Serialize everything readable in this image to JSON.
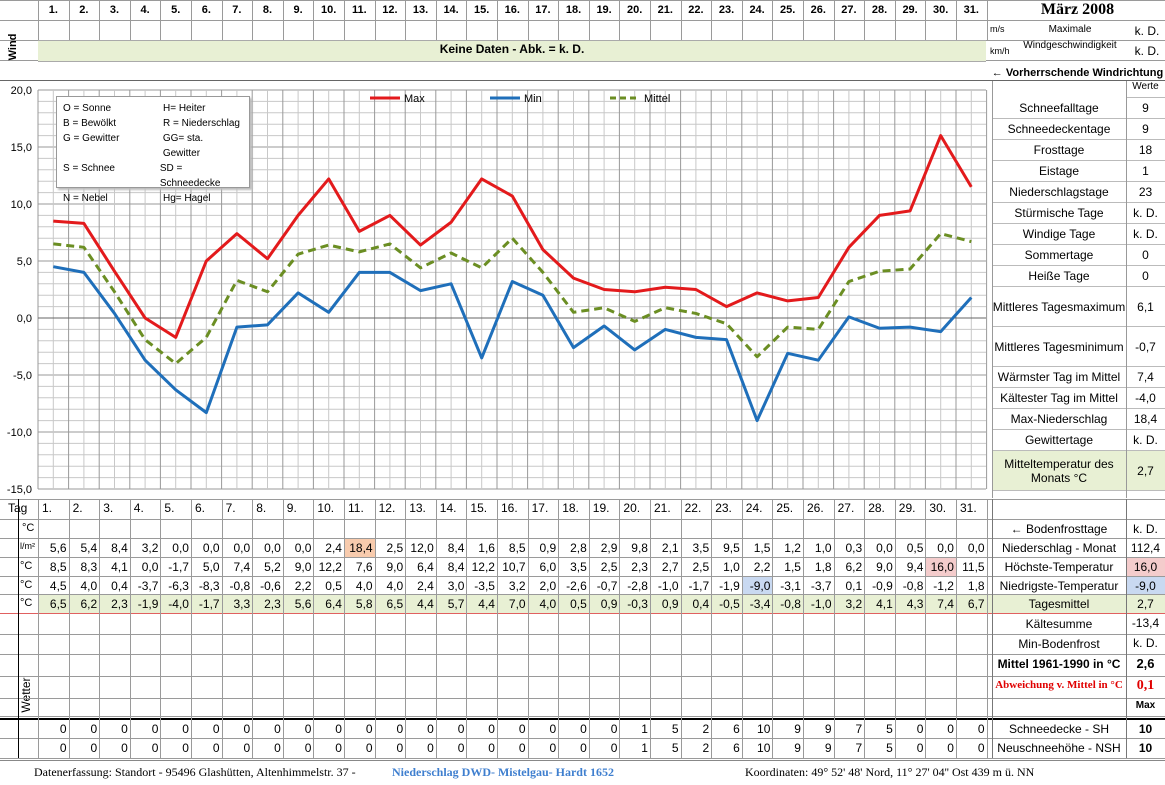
{
  "header": {
    "wind_label": "Wind",
    "nodata_text": "Keine Daten - Abk. = k. D.",
    "unit_ms": "m/s",
    "unit_kmh": "km/h",
    "max_wind_label": "Maximale Windgeschwindigkeit",
    "max_wind_value_1": "k. D.",
    "max_wind_value_2": "k. D.",
    "month_title": "März 2008",
    "wind_dir_label": "← Vorherrschende Windrichtung"
  },
  "days": [
    "1.",
    "2.",
    "3.",
    "4.",
    "5.",
    "6.",
    "7.",
    "8.",
    "9.",
    "10.",
    "11.",
    "12.",
    "13.",
    "14.",
    "15.",
    "16.",
    "17.",
    "18.",
    "19.",
    "20.",
    "21.",
    "22.",
    "23.",
    "24.",
    "25.",
    "26.",
    "27.",
    "28.",
    "29.",
    "30.",
    "31."
  ],
  "legend_box": {
    "lines": [
      [
        "O = Sonne",
        "H= Heiter"
      ],
      [
        "B = Bewölkt",
        "R = Niederschlag"
      ],
      [
        "G = Gewitter",
        "GG= sta. Gewitter"
      ],
      [
        "S = Schnee",
        "SD = Schneedecke"
      ],
      [
        "N = Nebel",
        "Hg= Hagel"
      ]
    ]
  },
  "chart_data": {
    "type": "line",
    "x": [
      1,
      2,
      3,
      4,
      5,
      6,
      7,
      8,
      9,
      10,
      11,
      12,
      13,
      14,
      15,
      16,
      17,
      18,
      19,
      20,
      21,
      22,
      23,
      24,
      25,
      26,
      27,
      28,
      29,
      30,
      31
    ],
    "ylim": [
      -15,
      20
    ],
    "yticks": [
      "20,0",
      "15,0",
      "10,0",
      "5,0",
      "0,0",
      "-5,0",
      "-10,0",
      "-15,0"
    ],
    "grid": true,
    "legend_position": "top",
    "series": [
      {
        "name": "Max",
        "color": "#e31a1c",
        "style": "solid",
        "values": [
          8.5,
          8.3,
          4.1,
          0.0,
          -1.7,
          5.0,
          7.4,
          5.2,
          9.0,
          12.2,
          7.6,
          9.0,
          6.4,
          8.4,
          12.2,
          10.7,
          6.0,
          3.5,
          2.5,
          2.3,
          2.7,
          2.5,
          1.0,
          2.2,
          1.5,
          1.8,
          6.2,
          9.0,
          9.4,
          16.0,
          11.5
        ]
      },
      {
        "name": "Min",
        "color": "#1f6fba",
        "style": "solid",
        "values": [
          4.5,
          4.0,
          0.4,
          -3.7,
          -6.3,
          -8.3,
          -0.8,
          -0.6,
          2.2,
          0.5,
          4.0,
          4.0,
          2.4,
          3.0,
          -3.5,
          3.2,
          2.0,
          -2.6,
          -0.7,
          -2.8,
          -1.0,
          -1.7,
          -1.9,
          -9.0,
          -3.1,
          -3.7,
          0.1,
          -0.9,
          -0.8,
          -1.2,
          1.8
        ]
      },
      {
        "name": "Mittel",
        "color": "#6b8e23",
        "style": "dashed",
        "values": [
          6.5,
          6.2,
          2.3,
          -1.9,
          -4.0,
          -1.7,
          3.3,
          2.3,
          5.6,
          6.4,
          5.8,
          6.5,
          4.4,
          5.7,
          4.4,
          7.0,
          4.0,
          0.5,
          0.9,
          -0.3,
          0.9,
          0.4,
          -0.5,
          -3.4,
          -0.8,
          -1.0,
          3.2,
          4.1,
          4.3,
          7.4,
          6.7
        ]
      }
    ]
  },
  "stats": {
    "header": "Werte",
    "rows": [
      {
        "label": "Schneefalltage",
        "value": "9"
      },
      {
        "label": "Schneedeckentage",
        "value": "9"
      },
      {
        "label": "Frosttage",
        "value": "18"
      },
      {
        "label": "Eistage",
        "value": "1"
      },
      {
        "label": "Niederschlagstage",
        "value": "23"
      },
      {
        "label": "Stürmische Tage",
        "value": "k. D."
      },
      {
        "label": "Windige Tage",
        "value": "k. D."
      },
      {
        "label": "Sommertage",
        "value": "0"
      },
      {
        "label": "Heiße Tage",
        "value": "0"
      },
      {
        "label": "Mittleres Tagesmaximum",
        "value": "6,1"
      },
      {
        "label": "Mittleres Tagesminimum",
        "value": "-0,7"
      },
      {
        "label": "Wärmster Tag im Mittel",
        "value": "7,4"
      },
      {
        "label": "Kältester Tag im Mittel",
        "value": "-4,0"
      },
      {
        "label": "Max-Niederschlag",
        "value": "18,4"
      },
      {
        "label": "Gewittertage",
        "value": "k. D."
      },
      {
        "label": "Mitteltemperatur des Monats °C",
        "value": "2,7"
      }
    ]
  },
  "table": {
    "tag_label": "Tag",
    "bodenfrost_label": "← Bodenfrosttage",
    "bodenfrost_value": "k. D.",
    "rows": [
      {
        "unit": "l/m²",
        "label": "Niederschlag - Monat",
        "total": "112,4",
        "values": [
          "5,6",
          "5,4",
          "8,4",
          "3,2",
          "0,0",
          "0,0",
          "0,0",
          "0,0",
          "0,0",
          "2,4",
          "18,4",
          "2,5",
          "12,0",
          "8,4",
          "1,6",
          "8,5",
          "0,9",
          "2,8",
          "2,9",
          "9,8",
          "2,1",
          "3,5",
          "9,5",
          "1,5",
          "1,2",
          "1,0",
          "0,3",
          "0,0",
          "0,5",
          "0,0",
          "0,0"
        ]
      },
      {
        "unit": "°C",
        "label": "Höchste-Temperatur",
        "total": "16,0",
        "values": [
          "8,5",
          "8,3",
          "4,1",
          "0,0",
          "-1,7",
          "5,0",
          "7,4",
          "5,2",
          "9,0",
          "12,2",
          "7,6",
          "9,0",
          "6,4",
          "8,4",
          "12,2",
          "10,7",
          "6,0",
          "3,5",
          "2,5",
          "2,3",
          "2,7",
          "2,5",
          "1,0",
          "2,2",
          "1,5",
          "1,8",
          "6,2",
          "9,0",
          "9,4",
          "16,0",
          "11,5"
        ]
      },
      {
        "unit": "°C",
        "label": "Niedrigste-Temperatur",
        "total": "-9,0",
        "values": [
          "4,5",
          "4,0",
          "0,4",
          "-3,7",
          "-6,3",
          "-8,3",
          "-0,8",
          "-0,6",
          "2,2",
          "0,5",
          "4,0",
          "4,0",
          "2,4",
          "3,0",
          "-3,5",
          "3,2",
          "2,0",
          "-2,6",
          "-0,7",
          "-2,8",
          "-1,0",
          "-1,7",
          "-1,9",
          "-9,0",
          "-3,1",
          "-3,7",
          "0,1",
          "-0,9",
          "-0,8",
          "-1,2",
          "1,8"
        ]
      },
      {
        "unit": "°C",
        "label": "Tagesmittel",
        "total": "2,7",
        "values": [
          "6,5",
          "6,2",
          "2,3",
          "-1,9",
          "-4,0",
          "-1,7",
          "3,3",
          "2,3",
          "5,6",
          "6,4",
          "5,8",
          "6,5",
          "4,4",
          "5,7",
          "4,4",
          "7,0",
          "4,0",
          "0,5",
          "0,9",
          "-0,3",
          "0,9",
          "0,4",
          "-0,5",
          "-3,4",
          "-0,8",
          "-1,0",
          "3,2",
          "4,1",
          "4,3",
          "7,4",
          "6,7"
        ]
      }
    ],
    "extra": [
      {
        "label": "Kältesumme",
        "value": "-13,4"
      },
      {
        "label": "Min-Bodenfrost",
        "value": "k. D."
      },
      {
        "label": "Mittel 1961-1990 in °C",
        "value": "2,6"
      },
      {
        "label": "Abweichung v. Mittel in °C",
        "value": "0,1"
      },
      {
        "label": "",
        "value": "Max"
      }
    ],
    "wetter_label": "Wetter",
    "snow_rows": [
      {
        "label": "Schneedecke -  SH",
        "total": "10",
        "values": [
          "0",
          "0",
          "0",
          "0",
          "0",
          "0",
          "0",
          "0",
          "0",
          "0",
          "0",
          "0",
          "0",
          "0",
          "0",
          "0",
          "0",
          "0",
          "0",
          "1",
          "5",
          "2",
          "6",
          "10",
          "9",
          "9",
          "7",
          "5",
          "0",
          "0",
          "0"
        ]
      },
      {
        "label": "Neuschneehöhe - NSH",
        "total": "10",
        "values": [
          "0",
          "0",
          "0",
          "0",
          "0",
          "0",
          "0",
          "0",
          "0",
          "0",
          "0",
          "0",
          "0",
          "0",
          "0",
          "0",
          "0",
          "0",
          "0",
          "1",
          "5",
          "2",
          "6",
          "10",
          "9",
          "9",
          "7",
          "5",
          "0",
          "0",
          "0"
        ]
      }
    ]
  },
  "footer": {
    "left": "Datenerfassung:  Standort -  95496  Glashütten, Altenhimmelstr. 37 -",
    "link": "Niederschlag DWD- Mistelgau- Hardt 1652",
    "coords": "Koordinaten:  49° 52' 48' Nord,   11° 27' 04'' Ost   439 m ü. NN"
  },
  "colors": {
    "green_band": "#e8f0d4",
    "orange_highlight": "#f8cbad",
    "blue_highlight": "#c9d9f1",
    "pink_highlight": "#f4cccc",
    "red_text": "#e00000"
  }
}
